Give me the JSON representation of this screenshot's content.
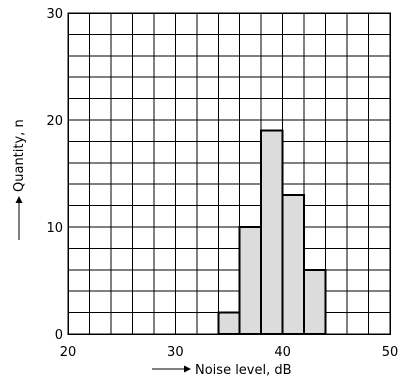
{
  "chart_data": {
    "type": "bar",
    "title": "",
    "xlabel": "Noise level, dB",
    "ylabel": "Quantity, n",
    "xlim": [
      20,
      50
    ],
    "ylim": [
      0,
      30
    ],
    "x_ticks": [
      20,
      30,
      40,
      50
    ],
    "y_ticks": [
      0,
      10,
      20,
      30
    ],
    "x_tick_labels": [
      "20",
      "30",
      "40",
      "50"
    ],
    "y_tick_labels": [
      "0",
      "10",
      "20",
      "30"
    ],
    "x_grid_step": 2,
    "y_grid_step": 2,
    "grid": true,
    "bins": [
      {
        "x0": 34,
        "x1": 36,
        "value": 2
      },
      {
        "x0": 36,
        "x1": 38,
        "value": 10
      },
      {
        "x0": 38,
        "x1": 40,
        "value": 19
      },
      {
        "x0": 40,
        "x1": 42,
        "value": 13
      },
      {
        "x0": 42,
        "x1": 44,
        "value": 6
      }
    ],
    "bar_color": "#dcdcdc"
  }
}
